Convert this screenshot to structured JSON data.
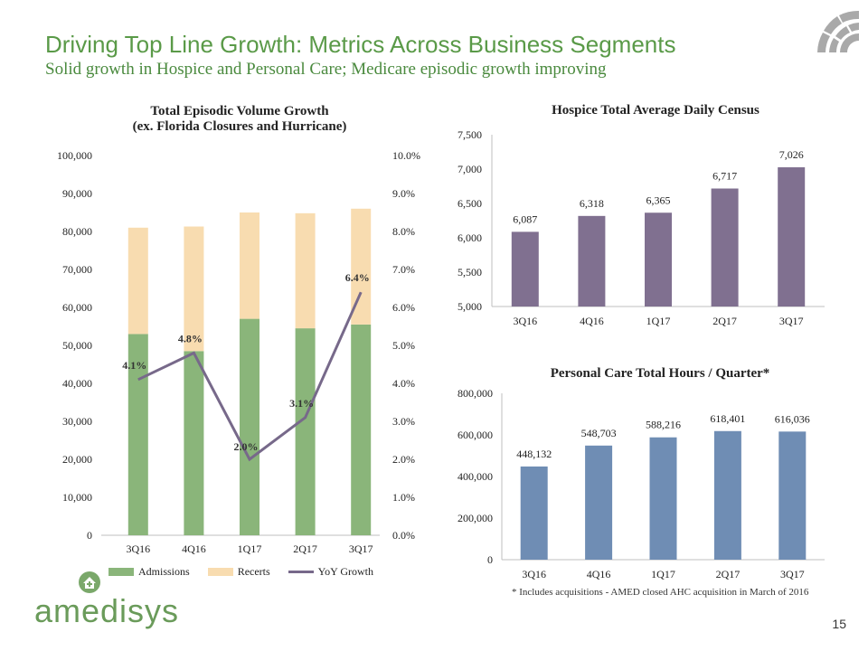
{
  "header": {
    "title": "Driving Top Line Growth: Metrics Across Business Segments",
    "subtitle": "Solid growth in Hospice and Personal Care; Medicare episodic growth improving"
  },
  "brand": {
    "name": "amedisys",
    "page_number": "15"
  },
  "footnote": "* Includes acquisitions -  AMED closed AHC acquisition in March of 2016",
  "colors": {
    "admissions": "#8ab57a",
    "recerts": "#f8dcb0",
    "yoy": "#77698a",
    "hospice": "#807090",
    "personal_care": "#6f8db4",
    "brand_green": "#5a9a48"
  },
  "chart_data": [
    {
      "type": "bar",
      "stacked": true,
      "title_line1": "Total Episodic Volume Growth",
      "title_line2": "(ex. Florida Closures and Hurricane)",
      "categories": [
        "3Q16",
        "4Q16",
        "1Q17",
        "2Q17",
        "3Q17"
      ],
      "series": [
        {
          "name": "Admissions",
          "values": [
            53000,
            48500,
            57000,
            54500,
            55500
          ]
        },
        {
          "name": "Recerts",
          "values": [
            28000,
            32800,
            28000,
            30300,
            30500
          ]
        }
      ],
      "line_series": {
        "name": "YoY Growth",
        "values": [
          4.1,
          4.8,
          2.0,
          3.1,
          6.4
        ],
        "labels": [
          "4.1%",
          "4.8%",
          "2.0%",
          "3.1%",
          "6.4%"
        ]
      },
      "left_ticks": [
        "0",
        "10,000",
        "20,000",
        "30,000",
        "40,000",
        "50,000",
        "60,000",
        "70,000",
        "80,000",
        "90,000",
        "100,000"
      ],
      "right_ticks": [
        "0.0%",
        "1.0%",
        "2.0%",
        "3.0%",
        "4.0%",
        "5.0%",
        "6.0%",
        "7.0%",
        "8.0%",
        "9.0%",
        "10.0%"
      ],
      "ylim": [
        0,
        100000
      ],
      "y2lim": [
        0,
        10
      ],
      "legend": [
        "Admissions",
        "Recerts",
        "YoY Growth"
      ]
    },
    {
      "type": "bar",
      "title": "Hospice Total Average Daily Census",
      "categories": [
        "3Q16",
        "4Q16",
        "1Q17",
        "2Q17",
        "3Q17"
      ],
      "values": [
        6087,
        6318,
        6365,
        6717,
        7026
      ],
      "labels": [
        "6,087",
        "6,318",
        "6,365",
        "6,717",
        "7,026"
      ],
      "ticks": [
        "5,000",
        "5,500",
        "6,000",
        "6,500",
        "7,000",
        "7,500"
      ],
      "ylim": [
        5000,
        7500
      ]
    },
    {
      "type": "bar",
      "title": "Personal Care Total Hours / Quarter*",
      "categories": [
        "3Q16",
        "4Q16",
        "1Q17",
        "2Q17",
        "3Q17"
      ],
      "values": [
        448132,
        548703,
        588216,
        618401,
        616036
      ],
      "labels": [
        "448,132",
        "548,703",
        "588,216",
        "618,401",
        "616,036"
      ],
      "ticks": [
        "0",
        "200,000",
        "400,000",
        "600,000",
        "800,000"
      ],
      "ylim": [
        0,
        800000
      ]
    }
  ]
}
